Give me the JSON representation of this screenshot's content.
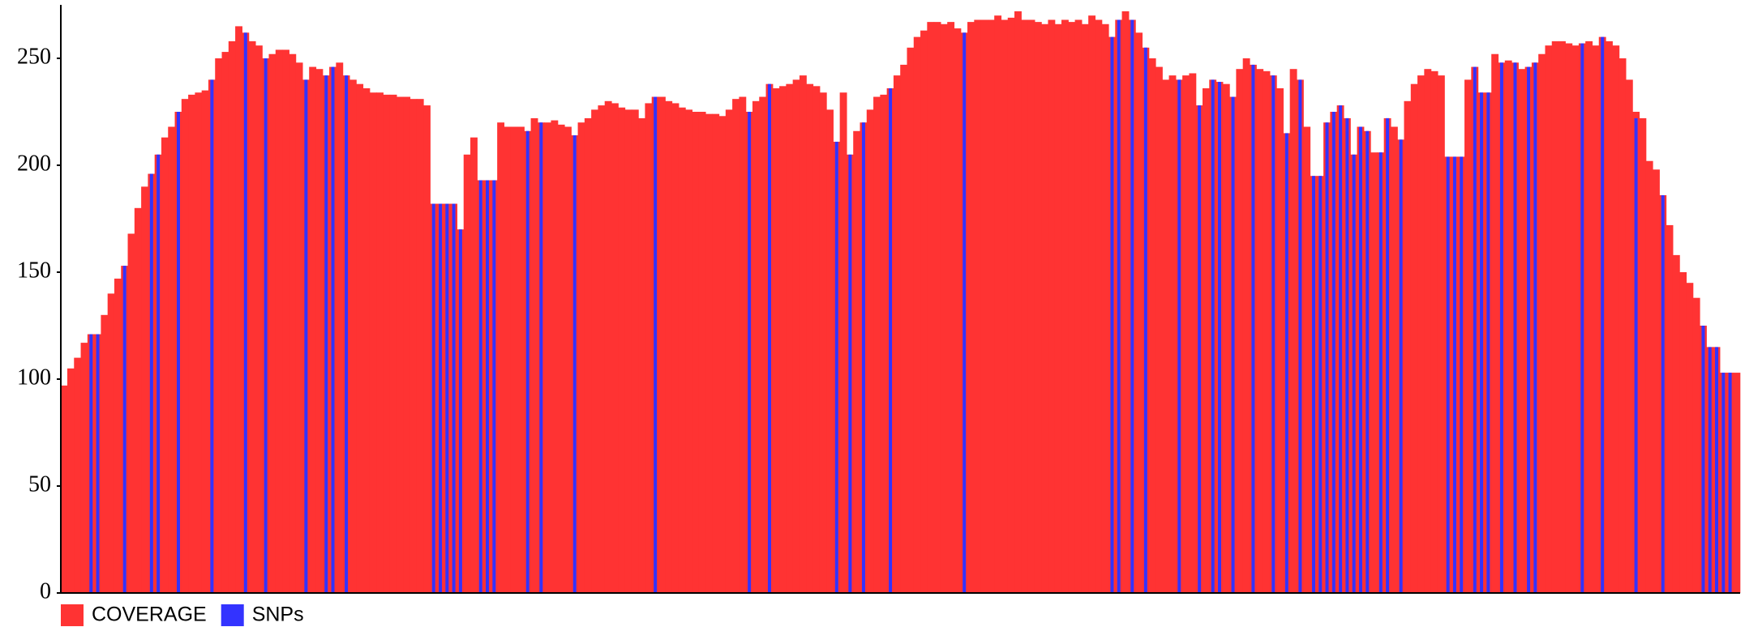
{
  "chart_data": {
    "type": "area",
    "legend": "bottom-left",
    "ylim": [
      0,
      275
    ],
    "yticks": [
      0,
      50,
      100,
      150,
      200,
      250
    ],
    "series": [
      {
        "name": "COVERAGE",
        "color": "#ff3333",
        "values": [
          97,
          105,
          110,
          117,
          121,
          121,
          130,
          140,
          147,
          153,
          168,
          180,
          190,
          196,
          205,
          213,
          218,
          225,
          231,
          233,
          234,
          235,
          240,
          250,
          253,
          258,
          265,
          262,
          258,
          256,
          250,
          252,
          254,
          254,
          252,
          248,
          240,
          246,
          245,
          242,
          246,
          248,
          242,
          240,
          238,
          236,
          234,
          234,
          233,
          233,
          232,
          232,
          231,
          231,
          228,
          182,
          182,
          182,
          182,
          170,
          205,
          213,
          193,
          193,
          193,
          220,
          218,
          218,
          218,
          216,
          222,
          220,
          220,
          221,
          219,
          218,
          214,
          220,
          222,
          226,
          228,
          230,
          229,
          227,
          226,
          226,
          222,
          229,
          232,
          232,
          230,
          229,
          227,
          226,
          225,
          225,
          224,
          224,
          223,
          226,
          231,
          232,
          225,
          230,
          232,
          238,
          236,
          237,
          238,
          240,
          242,
          238,
          237,
          234,
          226,
          211,
          234,
          205,
          216,
          220,
          226,
          232,
          233,
          236,
          242,
          247,
          255,
          260,
          263,
          267,
          267,
          266,
          267,
          264,
          262,
          267,
          268,
          268,
          268,
          270,
          268,
          269,
          272,
          268,
          268,
          267,
          266,
          268,
          266,
          268,
          267,
          268,
          266,
          270,
          268,
          266,
          260,
          268,
          272,
          268,
          262,
          255,
          250,
          246,
          240,
          242,
          240,
          242,
          243,
          228,
          236,
          240,
          239,
          238,
          232,
          245,
          250,
          247,
          245,
          244,
          242,
          236,
          215,
          245,
          240,
          218,
          195,
          195,
          220,
          225,
          228,
          222,
          205,
          218,
          216,
          206,
          206,
          222,
          218,
          212,
          230,
          238,
          242,
          245,
          244,
          242,
          204,
          204,
          204,
          240,
          246,
          234,
          234,
          252,
          248,
          249,
          248,
          245,
          246,
          248,
          252,
          256,
          258,
          258,
          257,
          256,
          257,
          258,
          256,
          260,
          258,
          256,
          250,
          240,
          225,
          222,
          202,
          198,
          186,
          172,
          158,
          150,
          145,
          138,
          125,
          115,
          115,
          103,
          103,
          103
        ]
      },
      {
        "name": "SNPs",
        "color": "#3333ff",
        "values": [
          0,
          0,
          0,
          0,
          121,
          121,
          0,
          0,
          0,
          153,
          0,
          0,
          0,
          196,
          205,
          0,
          0,
          225,
          0,
          0,
          0,
          0,
          240,
          0,
          0,
          0,
          0,
          262,
          0,
          0,
          250,
          0,
          0,
          0,
          0,
          0,
          240,
          0,
          0,
          242,
          246,
          0,
          242,
          0,
          0,
          0,
          0,
          0,
          0,
          0,
          0,
          0,
          0,
          0,
          0,
          182,
          182,
          182,
          182,
          170,
          0,
          0,
          193,
          193,
          193,
          0,
          0,
          0,
          0,
          216,
          0,
          220,
          0,
          0,
          0,
          0,
          214,
          0,
          0,
          0,
          0,
          0,
          0,
          0,
          0,
          0,
          0,
          0,
          232,
          0,
          0,
          0,
          0,
          0,
          0,
          0,
          0,
          0,
          0,
          0,
          0,
          0,
          225,
          0,
          0,
          238,
          0,
          0,
          0,
          0,
          0,
          0,
          0,
          0,
          0,
          211,
          0,
          205,
          0,
          220,
          0,
          0,
          0,
          236,
          0,
          0,
          0,
          0,
          0,
          0,
          0,
          0,
          0,
          0,
          262,
          0,
          0,
          0,
          0,
          0,
          0,
          0,
          0,
          0,
          0,
          0,
          0,
          0,
          0,
          0,
          0,
          0,
          0,
          0,
          0,
          0,
          260,
          268,
          0,
          268,
          0,
          255,
          0,
          0,
          0,
          0,
          240,
          0,
          0,
          228,
          0,
          240,
          239,
          0,
          232,
          0,
          0,
          247,
          0,
          0,
          242,
          0,
          215,
          0,
          240,
          0,
          195,
          195,
          220,
          225,
          228,
          222,
          205,
          218,
          216,
          0,
          206,
          222,
          0,
          212,
          0,
          0,
          0,
          0,
          0,
          0,
          204,
          204,
          204,
          0,
          246,
          234,
          234,
          0,
          248,
          0,
          248,
          0,
          246,
          248,
          0,
          0,
          0,
          0,
          0,
          0,
          257,
          0,
          0,
          260,
          0,
          0,
          0,
          0,
          222,
          0,
          0,
          0,
          186,
          0,
          0,
          0,
          0,
          0,
          125,
          115,
          115,
          103,
          103,
          0
        ]
      }
    ]
  }
}
